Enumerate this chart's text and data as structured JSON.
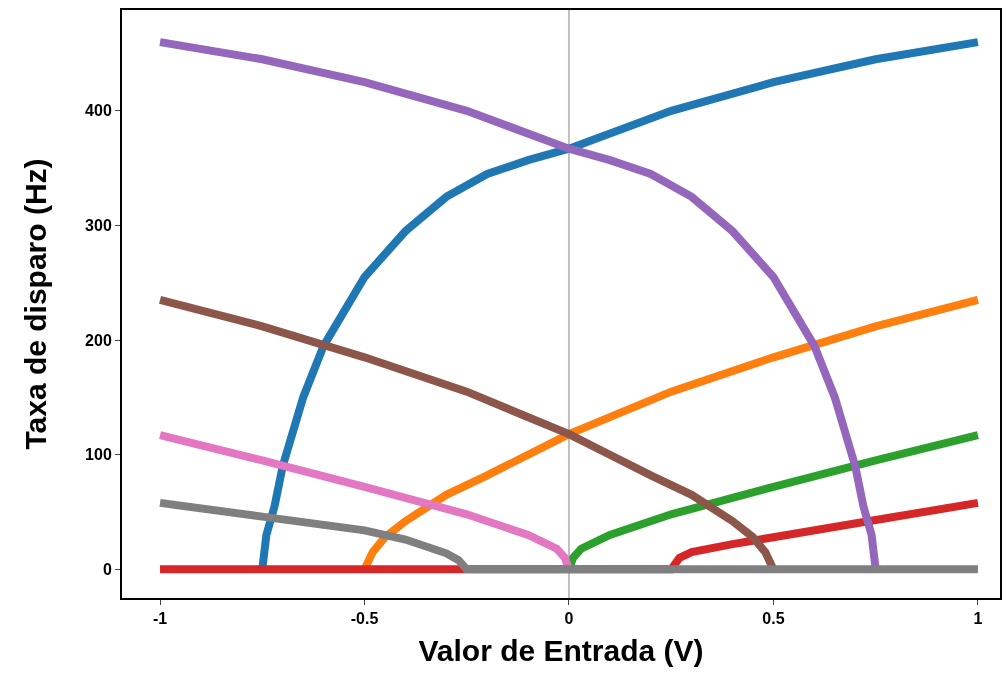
{
  "chart_data": {
    "type": "line",
    "xlabel": "Valor de Entrada (V)",
    "ylabel": "Taxa de disparo (Hz)",
    "xlim": [
      -1.093,
      1.054
    ],
    "ylim": [
      -25,
      488
    ],
    "xticks": [
      -1,
      -0.5,
      0,
      0.5,
      1
    ],
    "yticks": [
      0,
      100,
      200,
      300,
      400
    ],
    "grid": false,
    "marker": "none",
    "line_style": "solid",
    "ref_lines": [
      {
        "axis": "x",
        "value": 0,
        "color": "#c0c0c0"
      }
    ],
    "series": [
      {
        "color": "#1f77b4",
        "x": [
          -0.75,
          -0.74,
          -0.72,
          -0.7,
          -0.65,
          -0.6,
          -0.5,
          -0.4,
          -0.3,
          -0.2,
          -0.1,
          0,
          0.25,
          0.5,
          0.75,
          1
        ],
        "values": [
          0,
          30,
          55,
          90,
          150,
          195,
          255,
          295,
          325,
          345,
          357,
          367,
          400,
          425,
          445,
          460
        ]
      },
      {
        "color": "#ff7f0e",
        "x": [
          -0.5,
          -0.48,
          -0.45,
          -0.4,
          -0.3,
          -0.2,
          -0.1,
          0,
          0.25,
          0.5,
          0.75,
          1
        ],
        "values": [
          0,
          15,
          28,
          42,
          65,
          82,
          100,
          118,
          155,
          185,
          212,
          235
        ]
      },
      {
        "color": "#2ca02c",
        "x": [
          0,
          0.01,
          0.03,
          0.1,
          0.25,
          0.5,
          0.75,
          1
        ],
        "values": [
          0,
          10,
          18,
          30,
          48,
          72,
          95,
          117
        ]
      },
      {
        "color": "#d62728",
        "x": [
          -1,
          0.25,
          0.27,
          0.3,
          0.4,
          0.5,
          0.75,
          1
        ],
        "values": [
          0,
          0,
          10,
          15,
          22,
          28,
          43,
          58
        ]
      },
      {
        "color": "#9467bd",
        "x": [
          -1,
          -0.75,
          -0.5,
          -0.25,
          0,
          0.1,
          0.2,
          0.3,
          0.4,
          0.5,
          0.6,
          0.65,
          0.7,
          0.72,
          0.74,
          0.75
        ],
        "values": [
          460,
          445,
          425,
          400,
          367,
          357,
          345,
          325,
          295,
          255,
          195,
          150,
          90,
          55,
          30,
          0
        ]
      },
      {
        "color": "#8c564b",
        "x": [
          -1,
          -0.75,
          -0.5,
          -0.25,
          0,
          0.1,
          0.2,
          0.3,
          0.4,
          0.45,
          0.48,
          0.5
        ],
        "values": [
          235,
          212,
          185,
          155,
          118,
          100,
          82,
          65,
          42,
          28,
          15,
          0
        ]
      },
      {
        "color": "#e377c2",
        "x": [
          -1,
          -0.75,
          -0.5,
          -0.25,
          -0.1,
          -0.03,
          -0.01,
          0
        ],
        "values": [
          117,
          95,
          72,
          48,
          30,
          18,
          10,
          0
        ]
      },
      {
        "color": "#7f7f7f",
        "x": [
          -1,
          -0.75,
          -0.5,
          -0.4,
          -0.3,
          -0.27,
          -0.25,
          1
        ],
        "values": [
          58,
          46,
          34,
          26,
          14,
          8,
          0,
          0
        ]
      }
    ]
  }
}
